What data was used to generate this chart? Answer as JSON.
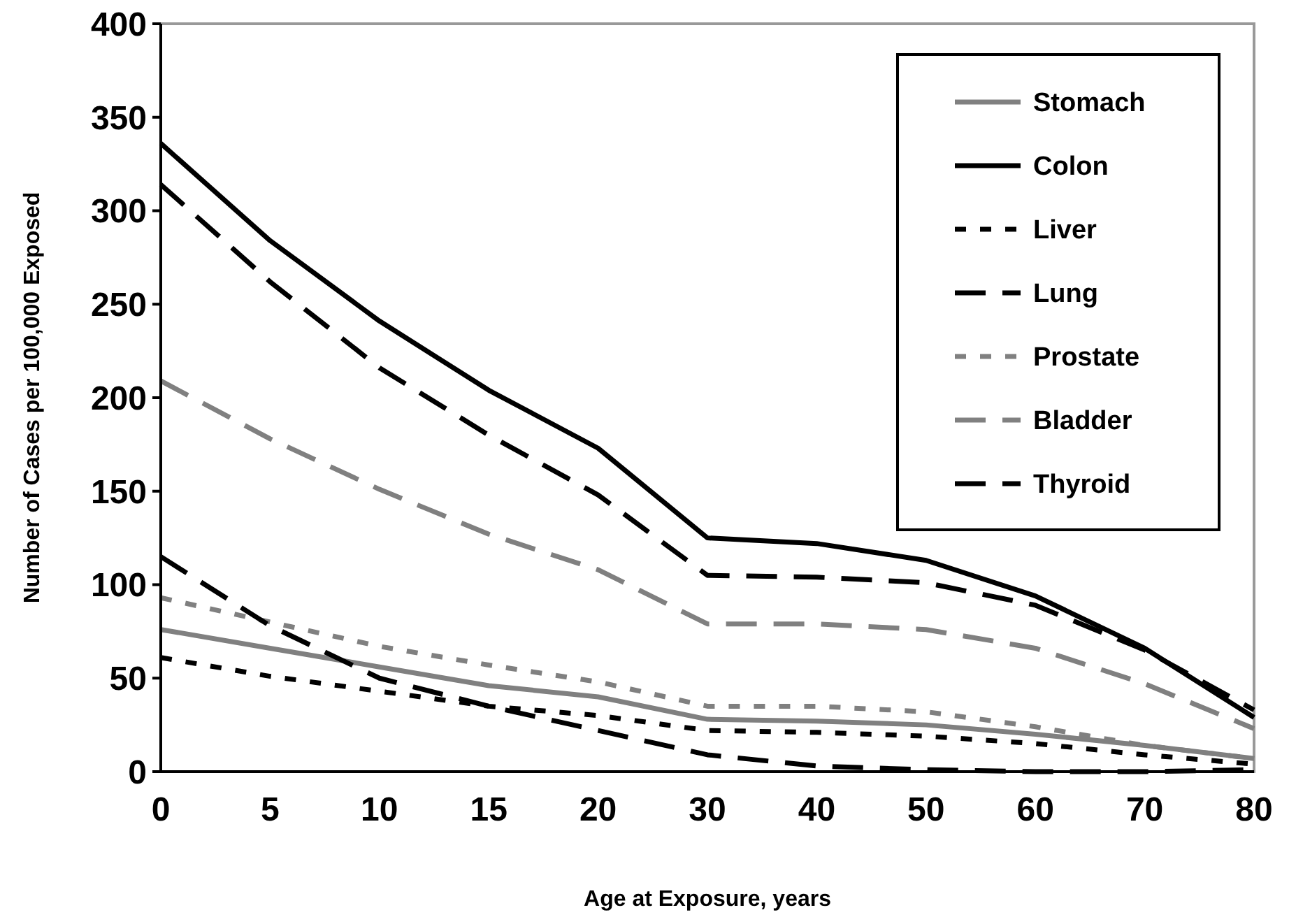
{
  "chart_data": {
    "type": "line",
    "xlabel": "Age at Exposure, years",
    "ylabel": "Number of Cases per 100,000 Exposed",
    "categories": [
      "0",
      "5",
      "10",
      "15",
      "20",
      "30",
      "40",
      "50",
      "60",
      "70",
      "80"
    ],
    "ylim": [
      0,
      400
    ],
    "yticks": [
      0,
      50,
      100,
      150,
      200,
      250,
      300,
      350,
      400
    ],
    "grid": false,
    "legend": "top right",
    "series": [
      {
        "name": "Stomach",
        "color": "#808080",
        "line_style": "solid",
        "values": [
          76,
          66,
          56,
          46,
          40,
          28,
          27,
          25,
          20,
          14,
          7
        ]
      },
      {
        "name": "Colon",
        "color": "#000000",
        "line_style": "solid",
        "values": [
          336,
          284,
          241,
          204,
          173,
          125,
          122,
          113,
          94,
          66,
          29
        ]
      },
      {
        "name": "Liver",
        "color": "#000000",
        "line_style": "dotted",
        "values": [
          61,
          51,
          43,
          35,
          30,
          22,
          21,
          19,
          15,
          9,
          4
        ]
      },
      {
        "name": "Lung",
        "color": "#000000",
        "line_style": "dashed",
        "values": [
          314,
          262,
          216,
          180,
          148,
          105,
          104,
          101,
          89,
          65,
          33
        ]
      },
      {
        "name": "Prostate",
        "color": "#808080",
        "line_style": "dotted",
        "values": [
          93,
          80,
          67,
          57,
          48,
          35,
          35,
          32,
          24,
          14,
          7
        ]
      },
      {
        "name": "Bladder",
        "color": "#808080",
        "line_style": "dashed",
        "values": [
          209,
          178,
          151,
          127,
          108,
          79,
          79,
          76,
          66,
          47,
          23
        ]
      },
      {
        "name": "Thyroid",
        "color": "#000000",
        "line_style": "dashed",
        "values": [
          115,
          78,
          50,
          35,
          22,
          9,
          3,
          1,
          0,
          0,
          1
        ]
      }
    ]
  }
}
